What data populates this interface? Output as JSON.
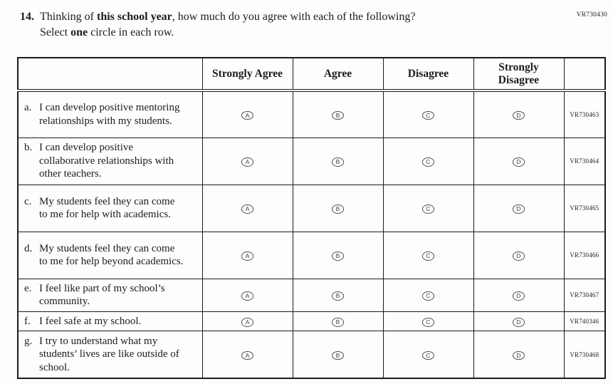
{
  "page": {
    "code_top_right": "VR730430"
  },
  "question": {
    "number": "14.",
    "line1": {
      "p1": "Thinking of ",
      "b1": "this school year",
      "p2": ", how much do you agree with each of the following?"
    },
    "line2": {
      "p1": "Select ",
      "b1": "one",
      "p2": " circle in each row."
    }
  },
  "table": {
    "header": {
      "statement": "",
      "options": [
        "Strongly Agree",
        "Agree",
        "Disagree",
        "Strongly Disagree"
      ],
      "code": ""
    },
    "option_letters": [
      "A",
      "B",
      "C",
      "D"
    ],
    "rows": [
      {
        "label": "a.",
        "text": "I can develop positive mentoring relationships with my students.",
        "code": "VR730463"
      },
      {
        "label": "b.",
        "text": "I can develop positive collaborative relationships with other teachers.",
        "code": "VR730464"
      },
      {
        "label": "c.",
        "text": "My students feel they can come to me for help with academics.",
        "code": "VR730465"
      },
      {
        "label": "d.",
        "text": "My students feel they can come to me for help beyond academics.",
        "code": "VR730466"
      },
      {
        "label": "e.",
        "text": "I feel like part of my school’s community.",
        "code": "VR730467"
      },
      {
        "label": "f.",
        "text": "I feel safe at my school.",
        "code": "VR740346"
      },
      {
        "label": "g.",
        "text": "I try to understand what my students’ lives are like outside of school.",
        "code": "VR730468"
      }
    ]
  },
  "colors": {
    "ink": "#1c1c1e",
    "bubble_stroke": "#4a4f58",
    "background": "#fdfdfc"
  }
}
